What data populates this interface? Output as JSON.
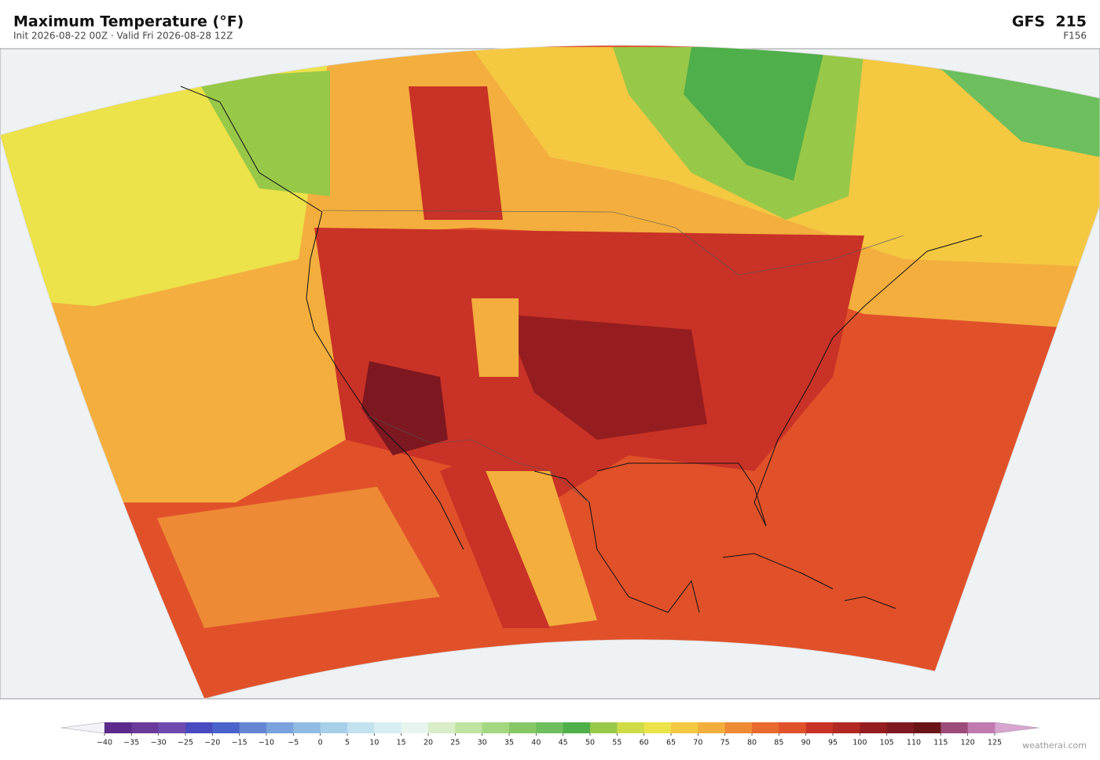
{
  "header": {
    "title": "Maximum Temperature  (°F)",
    "subtitle": "Init 2026-08-22 00Z  ·  Valid Fri 2026-08-28 12Z",
    "model": "GFS  215",
    "step": "F156"
  },
  "colorbar": {
    "ticks": [
      {
        "value": -40,
        "label": "−40"
      },
      {
        "value": -35,
        "label": "−35"
      },
      {
        "value": -30,
        "label": "−30"
      },
      {
        "value": -25,
        "label": "−25"
      },
      {
        "value": -20,
        "label": "−20"
      },
      {
        "value": -15,
        "label": "−15"
      },
      {
        "value": -10,
        "label": "−10"
      },
      {
        "value": -5,
        "label": "−5"
      },
      0,
      5,
      10,
      15,
      20,
      25,
      30,
      35,
      40,
      45,
      50,
      55,
      60,
      65,
      70,
      75,
      80,
      85,
      90,
      95,
      100,
      105,
      110,
      115,
      120,
      125
    ],
    "colors": [
      "#5b2a8c",
      "#6a3a9a",
      "#6f4bb0",
      "#4a4ac0",
      "#4a62cc",
      "#6686d4",
      "#7aa2dc",
      "#90bbe2",
      "#a7cfea",
      "#c2e2f0",
      "#d8eef2",
      "#e8f5ef",
      "#d8edc8",
      "#bfe3a0",
      "#a3d880",
      "#86c766",
      "#6cbf5c",
      "#4faf4a",
      "#98c848",
      "#cfdc48",
      "#ece24a",
      "#f5c842",
      "#f3ae3e",
      "#ee8a35",
      "#e86a2e",
      "#e0512a",
      "#c93226",
      "#b22823",
      "#961d1f",
      "#7e1820",
      "#6b1418",
      "#9b4a7a",
      "#c07ab0"
    ],
    "under_color": "#f4f4f8",
    "over_color": "#d8a5d0"
  },
  "footer": {
    "credit": "weatherai.com"
  }
}
